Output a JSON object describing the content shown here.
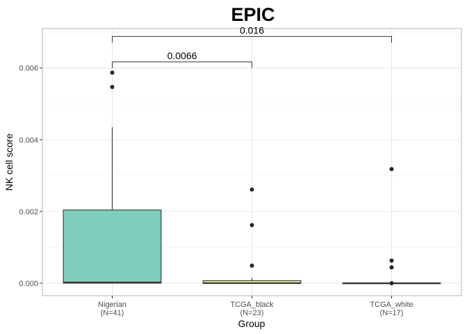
{
  "chart_data": {
    "type": "boxplot",
    "title": "EPIC",
    "xlabel": "Group",
    "ylabel": "NK cell score",
    "ylim": [
      -0.00035,
      0.0071
    ],
    "yticks": [
      0.0,
      0.002,
      0.004,
      0.006
    ],
    "ytick_labels": [
      "0.000",
      "0.002",
      "0.004",
      "0.006"
    ],
    "grid": true,
    "legend": "none",
    "categories": [
      {
        "key": "nigerian",
        "label": "Nigerian",
        "n_label": "(N=41)",
        "color": "#7fcdbb",
        "q1": 0.0,
        "median": 2e-05,
        "q3": 0.00204,
        "whisker_low": 0.0,
        "whisker_high": 0.00435,
        "outliers": [
          0.00547,
          0.00587
        ]
      },
      {
        "key": "tcga-black",
        "label": "TCGA_black",
        "n_label": "(N=23)",
        "color": "#e6e6a3",
        "q1": 0.0,
        "median": 0.0,
        "q3": 7e-05,
        "whisker_low": 0.0,
        "whisker_high": 0.00015,
        "outliers": [
          0.00049,
          0.00162,
          0.00261
        ]
      },
      {
        "key": "tcga-white",
        "label": "TCGA_white",
        "n_label": "(N=17)",
        "color": "#a6bddb",
        "q1": 0.0,
        "median": 0.0,
        "q3": 0.0,
        "whisker_low": 0.0,
        "whisker_high": 0.0,
        "outliers": [
          0.0,
          0.00044,
          0.00063,
          0.00318
        ]
      }
    ],
    "comparisons": [
      {
        "from": 0,
        "to": 1,
        "y": 0.00617,
        "label": "0.0066"
      },
      {
        "from": 0,
        "to": 2,
        "y": 0.00688,
        "label": "0.016"
      }
    ]
  }
}
